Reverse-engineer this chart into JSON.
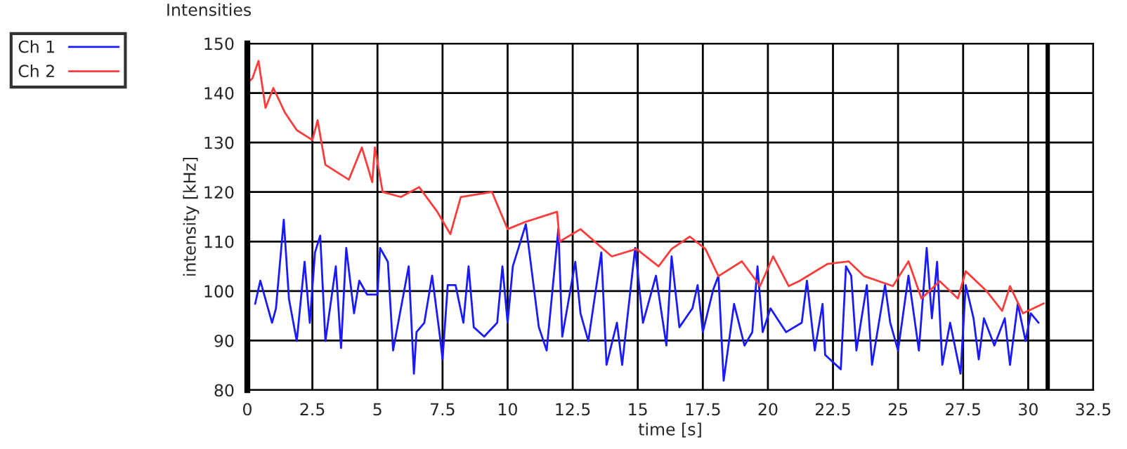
{
  "chart_data": {
    "type": "line",
    "title": "Intensities",
    "xlabel": "time [s]",
    "ylabel": "intensity [kHz]",
    "xlim": [
      0,
      32.5
    ],
    "xticks": [
      0,
      2.5,
      5,
      7.5,
      10,
      12.5,
      15,
      17.5,
      20,
      22.5,
      25,
      27.5,
      30,
      32.5
    ],
    "ylim": [
      80,
      150
    ],
    "yticks": [
      80,
      90,
      100,
      110,
      120,
      130,
      140,
      150
    ],
    "grid": true,
    "legend": "top left",
    "marker": "none",
    "line_style": "solid",
    "ref_lines": [
      {
        "axis": "x",
        "value": 30.75,
        "color": "#000000"
      }
    ],
    "series": [
      {
        "name": "Ch 1",
        "color": "#1a1aff",
        "x": [
          0.3,
          0.5,
          0.95,
          1.1,
          1.4,
          1.6,
          1.9,
          2.2,
          2.4,
          2.6,
          2.8,
          3.0,
          3.4,
          3.6,
          3.8,
          4.1,
          4.3,
          4.6,
          5.0,
          5.1,
          5.4,
          5.6,
          6.2,
          6.4,
          6.5,
          6.8,
          7.1,
          7.4,
          7.5,
          7.7,
          8.0,
          8.3,
          8.5,
          8.7,
          9.1,
          9.6,
          9.8,
          10.0,
          10.2,
          10.7,
          11.2,
          11.5,
          11.95,
          12.1,
          12.6,
          12.8,
          13.1,
          13.6,
          13.8,
          14.2,
          14.4,
          14.9,
          15.2,
          15.7,
          16.1,
          16.3,
          16.6,
          17.1,
          17.3,
          17.5,
          17.9,
          18.1,
          18.3,
          18.7,
          19.1,
          19.4,
          19.6,
          19.8,
          20.1,
          20.7,
          21.3,
          21.5,
          21.8,
          22.1,
          22.2,
          22.8,
          23.0,
          23.2,
          23.4,
          23.8,
          24.0,
          24.5,
          24.7,
          25.0,
          25.4,
          25.8,
          26.1,
          26.3,
          26.5,
          26.7,
          27.0,
          27.4,
          27.6,
          27.9,
          28.1,
          28.3,
          28.7,
          29.1,
          29.3,
          29.6,
          29.9,
          30.1,
          30.4
        ],
        "values": [
          97.4,
          102.1,
          93.6,
          96.5,
          114.4,
          98.4,
          89.9,
          105.9,
          93.6,
          107.8,
          111.2,
          89.9,
          105,
          88.5,
          108.7,
          95.5,
          102.1,
          99.3,
          99.3,
          108.7,
          105.9,
          88,
          105,
          83.3,
          91.7,
          93.6,
          103.1,
          90.8,
          86.2,
          101.2,
          101.2,
          93.6,
          105,
          92.7,
          90.8,
          93.6,
          105,
          93.6,
          105,
          113.5,
          92.7,
          88,
          112.6,
          90.8,
          105.9,
          95.5,
          89.9,
          107.8,
          85.1,
          93.6,
          85.1,
          108.7,
          93.6,
          103.1,
          89,
          107,
          92.7,
          96.5,
          101.2,
          91.7,
          100.3,
          103.1,
          81.9,
          97.4,
          89,
          91.7,
          105,
          91.7,
          96.5,
          91.7,
          93.6,
          102.1,
          88,
          97.4,
          87.1,
          84.2,
          105,
          103.1,
          88,
          101.2,
          85.1,
          101.2,
          93.6,
          88,
          103.1,
          88,
          108.7,
          94.5,
          105.9,
          85.1,
          93.6,
          83.3,
          101.2,
          94.5,
          86.2,
          94.5,
          89,
          94.5,
          85.1,
          97.4,
          89.9,
          95.5,
          93.6
        ]
      },
      {
        "name": "Ch 2",
        "color": "#ff3b3b",
        "x": [
          0,
          0.2,
          0.43,
          0.7,
          1.0,
          1.45,
          1.9,
          2.5,
          2.7,
          3.0,
          3.9,
          4.4,
          4.8,
          4.9,
          5.2,
          5.9,
          6.6,
          7.3,
          7.8,
          8.2,
          9.4,
          10.0,
          10.7,
          11.9,
          12.0,
          12.8,
          14.0,
          14.95,
          15.8,
          16.3,
          17.0,
          17.6,
          18.1,
          19.0,
          19.7,
          20.2,
          20.8,
          21.2,
          22.3,
          23.1,
          23.7,
          24.8,
          25.4,
          25.9,
          26.6,
          27.3,
          27.6,
          28.4,
          29.0,
          29.3,
          29.8,
          30.6
        ],
        "values": [
          142,
          143,
          146.5,
          137,
          141,
          136,
          132.5,
          130.5,
          134.5,
          125.5,
          122.5,
          129,
          122,
          129,
          120,
          119,
          121,
          116,
          111.5,
          119,
          120,
          112.5,
          114,
          116,
          110,
          112.5,
          107,
          108.5,
          105,
          108.5,
          111,
          108.5,
          103,
          106,
          101,
          107,
          101,
          102,
          105.5,
          106,
          103,
          101,
          106,
          98.5,
          102,
          98.5,
          104,
          100,
          96,
          101,
          95.5,
          97.5
        ]
      }
    ]
  }
}
